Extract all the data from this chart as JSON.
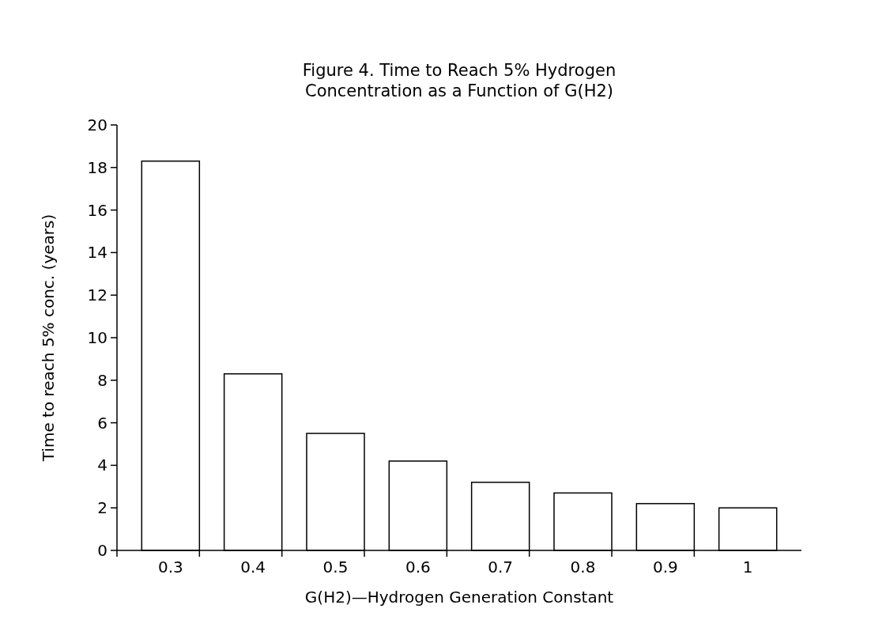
{
  "chart_data": {
    "type": "bar",
    "title": "Figure 4. Time to Reach 5% Hydrogen\nConcentration as a Function of G(H2)",
    "xlabel": "G(H2)—Hydrogen Generation Constant",
    "ylabel": "Time to reach 5% conc. (years)",
    "categories": [
      "0.3",
      "0.4",
      "0.5",
      "0.6",
      "0.7",
      "0.8",
      "0.9",
      "1"
    ],
    "values": [
      18.3,
      8.3,
      5.5,
      4.2,
      3.2,
      2.7,
      2.2,
      2.0
    ],
    "color": "#ffffff",
    "ylim": [
      0,
      20
    ],
    "yticks": [
      0,
      2,
      4,
      6,
      8,
      10,
      12,
      14,
      16,
      18,
      20
    ],
    "grid": false
  }
}
